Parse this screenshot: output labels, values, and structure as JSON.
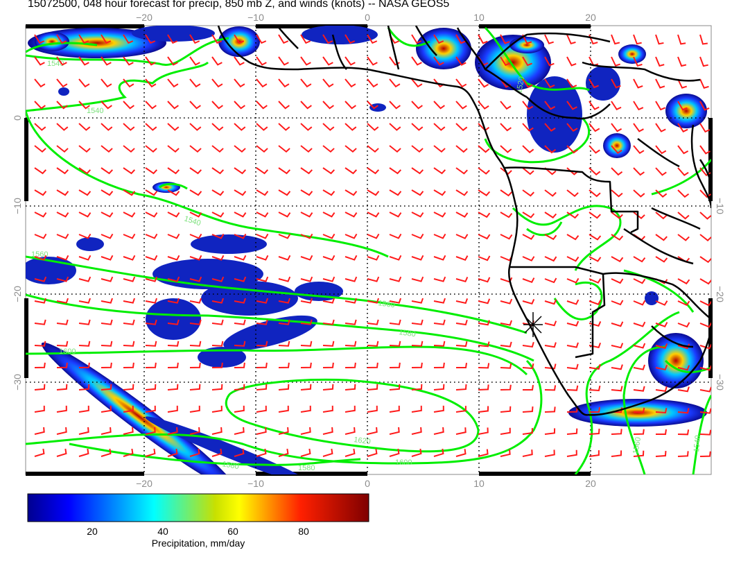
{
  "title": "15072500, 048 hour forecast for precip, 850 mb Z, and winds (knots) -- NASA GEOS5",
  "map": {
    "lon_ticks": [
      "−20",
      "−10",
      "0",
      "10",
      "20"
    ],
    "lat_ticks_left": [
      "0",
      "−10",
      "−20",
      "−30"
    ],
    "lat_ticks_right": [
      "−10",
      "−20",
      "−30"
    ],
    "contour_labels": [
      "1540",
      "1540",
      "1540",
      "1560",
      "1560",
      "1580",
      "1600",
      "1620",
      "1600",
      "1580",
      "1580",
      "1560",
      "1540",
      "1520"
    ],
    "colors": {
      "contour": "#00ee00",
      "wind_barbs": "#ff1a1a",
      "coastline": "#000000",
      "precip_low": "#00008f",
      "precip_high": "#7f0000"
    }
  },
  "colorbar": {
    "ticks": [
      "20",
      "40",
      "60",
      "80"
    ],
    "label": "Precipitation, mm/day",
    "range": [
      0,
      100
    ]
  }
}
